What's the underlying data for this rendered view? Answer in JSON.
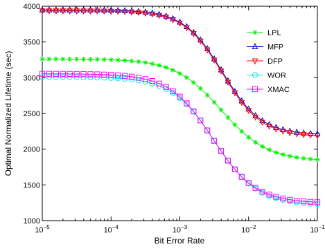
{
  "chart_data": {
    "type": "line",
    "xlabel": "Bit Error Rate",
    "ylabel": "Optimal Normalized Lifetime (sec)",
    "xscale": "log",
    "xlim": [
      1e-05,
      0.1
    ],
    "ylim": [
      1000,
      4000
    ],
    "x_ticks": [
      {
        "value": 1e-05,
        "label": "10",
        "exp": "−5"
      },
      {
        "value": 0.0001,
        "label": "10",
        "exp": "−4"
      },
      {
        "value": 0.001,
        "label": "10",
        "exp": "−3"
      },
      {
        "value": 0.01,
        "label": "10",
        "exp": "−2"
      },
      {
        "value": 0.1,
        "label": "10",
        "exp": "−1"
      }
    ],
    "y_ticks": [
      1000,
      1500,
      2000,
      2500,
      3000,
      3500,
      4000
    ],
    "grid": false,
    "legend_position": "top-right",
    "curve_model": {
      "form": "low + (high - low) / (1 + (x / center)^steepness)",
      "samples_per_decade": 10
    },
    "series": [
      {
        "name": "LPL",
        "color": "#00ee00",
        "marker": "star",
        "high": 3262,
        "low": 1833,
        "center": 0.004,
        "steepness": 1.3
      },
      {
        "name": "MFP",
        "color": "#0000cc",
        "marker": "triangle-up",
        "high": 3948,
        "low": 2200,
        "center": 0.0042,
        "steepness": 1.55
      },
      {
        "name": "DFP",
        "color": "#ff0000",
        "marker": "triangle-down",
        "high": 3935,
        "low": 2178,
        "center": 0.0042,
        "steepness": 1.55
      },
      {
        "name": "WOR",
        "color": "#00e6e6",
        "marker": "circle",
        "high": 3010,
        "low": 1218,
        "center": 0.0032,
        "steepness": 1.4
      },
      {
        "name": "XMAC",
        "color": "#ff00ff",
        "marker": "square",
        "high": 3055,
        "low": 1245,
        "center": 0.003,
        "steepness": 1.4
      }
    ]
  }
}
